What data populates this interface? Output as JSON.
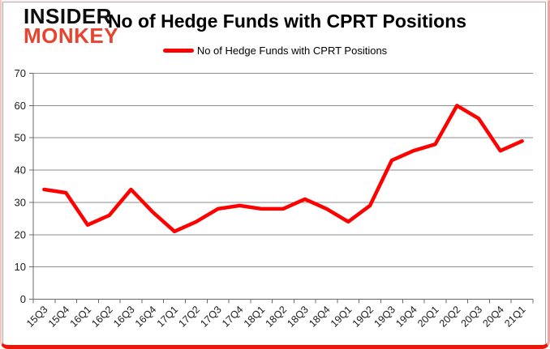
{
  "brand": {
    "line1": "INSIDER",
    "line2": "MONKEY",
    "color_line1": "#0d0d0d",
    "color_line2": "#e8432d"
  },
  "header": {
    "title": "No of Hedge Funds with CPRT Positions"
  },
  "legend": {
    "label": "No of Hedge Funds with CPRT Positions",
    "line_color": "#fe0000"
  },
  "chart_data": {
    "type": "line",
    "title": "No of Hedge Funds with CPRT Positions",
    "categories": [
      "15Q3",
      "15Q4",
      "16Q1",
      "16Q2",
      "16Q3",
      "16Q4",
      "17Q1",
      "17Q2",
      "17Q3",
      "17Q4",
      "18Q1",
      "18Q2",
      "18Q3",
      "18Q4",
      "19Q1",
      "19Q2",
      "19Q3",
      "19Q4",
      "20Q1",
      "20Q2",
      "20Q3",
      "20Q4",
      "21Q1"
    ],
    "series": [
      {
        "name": "No of Hedge Funds with CPRT Positions",
        "color": "#fe0000",
        "values": [
          34,
          33,
          23,
          26,
          34,
          27,
          21,
          24,
          28,
          29,
          28,
          28,
          31,
          28,
          24,
          29,
          43,
          46,
          48,
          60,
          56,
          46,
          49
        ]
      }
    ],
    "xlabel": "",
    "ylabel": "",
    "ylim": [
      0,
      70
    ],
    "yticks": [
      0,
      10,
      20,
      30,
      40,
      50,
      60,
      70
    ],
    "grid": true,
    "legend_position": "top-center",
    "x_label_rotation": -45
  },
  "style_colors": {
    "grid_color": "#8e8e8e",
    "axis_color": "#6b6b6b",
    "tick_label_color": "#1a1a1a",
    "frame_red": "#e9170a",
    "frame_pink": "#f3a29b",
    "chart_border_gray": "#a9a9a9"
  }
}
